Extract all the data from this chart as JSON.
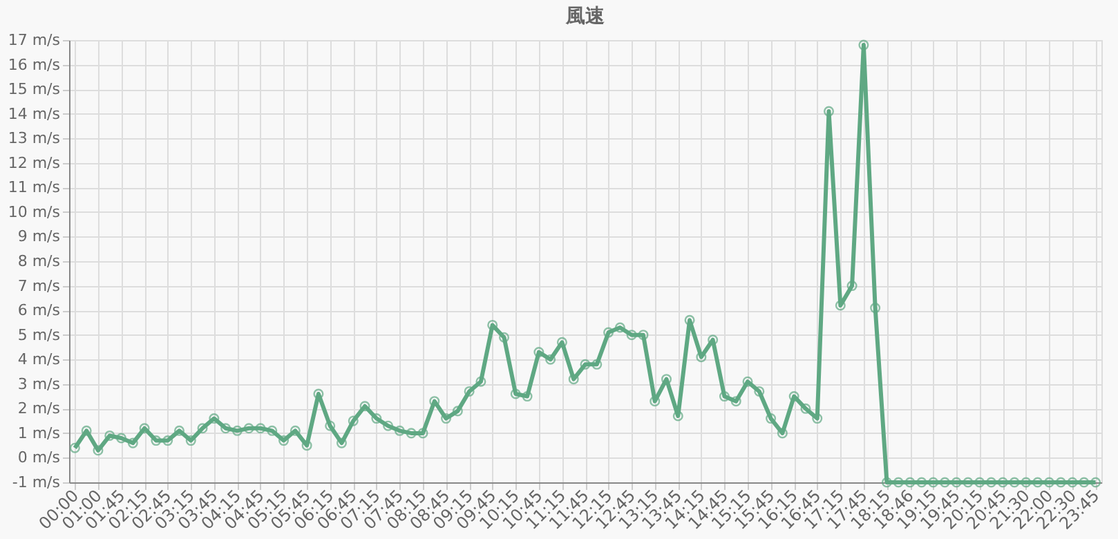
{
  "chart_data": {
    "type": "line",
    "title": "風速",
    "categories": [
      "00:00",
      null,
      "01:00",
      null,
      "01:45",
      null,
      "02:15",
      null,
      "02:45",
      null,
      "03:15",
      null,
      "03:45",
      null,
      "04:15",
      null,
      "04:45",
      null,
      "05:15",
      null,
      "05:45",
      null,
      "06:15",
      null,
      "06:45",
      null,
      "07:15",
      null,
      "07:45",
      null,
      "08:15",
      null,
      "08:45",
      null,
      "09:15",
      null,
      "09:45",
      null,
      "10:15",
      null,
      "10:45",
      null,
      "11:15",
      null,
      "11:45",
      null,
      "12:15",
      null,
      "12:45",
      null,
      "13:15",
      null,
      "13:45",
      null,
      "14:15",
      null,
      "14:45",
      null,
      "15:15",
      null,
      "15:45",
      null,
      "16:15",
      null,
      "16:45",
      null,
      "17:15",
      null,
      "17:45",
      null,
      "18:15",
      null,
      "18:46",
      null,
      "19:15",
      null,
      "19:45",
      null,
      "20:15",
      null,
      "20:45",
      null,
      "21:30",
      null,
      "22:00",
      null,
      "22:30",
      null,
      "23:45"
    ],
    "series": [
      {
        "color": "#5fa883",
        "values": [
          0.4,
          1.1,
          0.3,
          0.9,
          0.8,
          0.6,
          1.2,
          0.7,
          0.7,
          1.1,
          0.7,
          1.2,
          1.6,
          1.2,
          1.1,
          1.2,
          1.2,
          1.1,
          0.7,
          1.1,
          0.5,
          2.6,
          1.3,
          0.6,
          1.5,
          2.1,
          1.6,
          1.3,
          1.1,
          1.0,
          1.0,
          2.3,
          1.6,
          1.9,
          2.7,
          3.1,
          5.4,
          4.9,
          2.6,
          2.5,
          4.3,
          4.0,
          4.7,
          3.2,
          3.8,
          3.8,
          5.1,
          5.3,
          5.0,
          5.0,
          2.3,
          3.2,
          1.7,
          5.6,
          4.1,
          4.8,
          2.5,
          2.3,
          3.1,
          2.7,
          1.6,
          1.0,
          2.5,
          2.0,
          1.6,
          14.1,
          6.2,
          7.0,
          16.8,
          6.1,
          -1,
          -1,
          -1,
          -1,
          -1,
          -1,
          -1,
          -1,
          -1,
          -1,
          -1,
          -1,
          -1,
          -1,
          -1,
          -1,
          -1,
          -1,
          -1
        ]
      }
    ],
    "ylim": [
      -1,
      17
    ],
    "yticks": [
      {
        "value": -1,
        "label": "-1 m/s"
      },
      {
        "value": 0,
        "label": "0 m/s"
      },
      {
        "value": 1,
        "label": "1 m/s"
      },
      {
        "value": 2,
        "label": "2 m/s"
      },
      {
        "value": 3,
        "label": "3 m/s"
      },
      {
        "value": 4,
        "label": "4 m/s"
      },
      {
        "value": 5,
        "label": "5 m/s"
      },
      {
        "value": 6,
        "label": "6 m/s"
      },
      {
        "value": 7,
        "label": "7 m/s"
      },
      {
        "value": 8,
        "label": "8 m/s"
      },
      {
        "value": 9,
        "label": "9 m/s"
      },
      {
        "value": 10,
        "label": "10 m/s"
      },
      {
        "value": 11,
        "label": "11 m/s"
      },
      {
        "value": 12,
        "label": "12 m/s"
      },
      {
        "value": 13,
        "label": "13 m/s"
      },
      {
        "value": 14,
        "label": "14 m/s"
      },
      {
        "value": 15,
        "label": "15 m/s"
      },
      {
        "value": 16,
        "label": "16 m/s"
      },
      {
        "value": 17,
        "label": "17 m/s"
      }
    ],
    "grid": true,
    "marker": "circle",
    "line_style": "solid"
  }
}
